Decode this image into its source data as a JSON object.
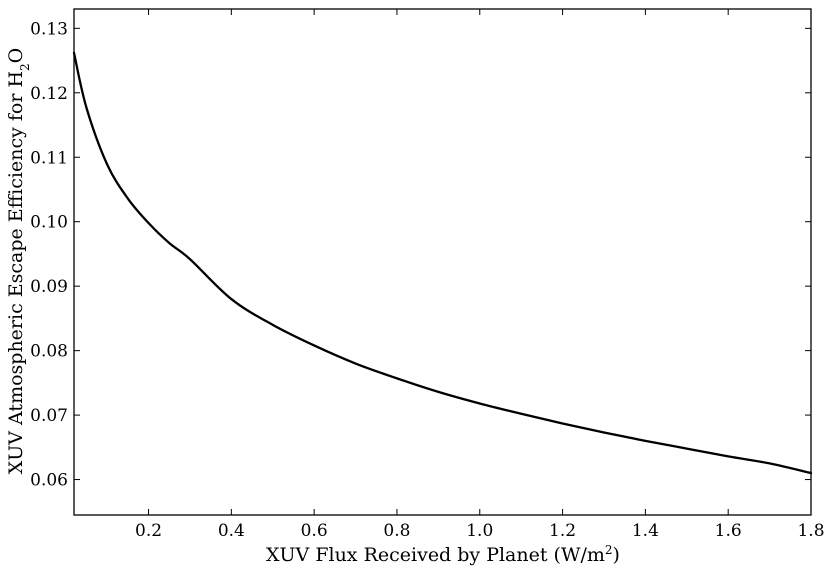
{
  "chart_data": {
    "type": "line",
    "xlabel": {
      "prefix": "XUV Flux Received by Planet (W/m",
      "superscript": "2",
      "suffix": ")"
    },
    "ylabel": {
      "prefix": "XUV Atmospheric Escape Efficiency for H",
      "subscript": "2",
      "suffix": "O"
    },
    "xlim": [
      0.02,
      1.8
    ],
    "ylim": [
      0.0545,
      0.133
    ],
    "xticks": [
      0.2,
      0.4,
      0.6,
      0.8,
      1.0,
      1.2,
      1.4,
      1.6,
      1.8
    ],
    "xtick_labels": [
      "0.2",
      "0.4",
      "0.6",
      "0.8",
      "1.0",
      "1.2",
      "1.4",
      "1.6",
      "1.8"
    ],
    "yticks": [
      0.06,
      0.07,
      0.08,
      0.09,
      0.1,
      0.11,
      0.12,
      0.13
    ],
    "ytick_labels": [
      "0.06",
      "0.07",
      "0.08",
      "0.09",
      "0.10",
      "0.11",
      "0.12",
      "0.13"
    ],
    "grid": false,
    "series": [
      {
        "color": "#000000",
        "x": [
          0.02,
          0.05,
          0.1,
          0.15,
          0.2,
          0.25,
          0.3,
          0.4,
          0.5,
          0.6,
          0.7,
          0.8,
          0.9,
          1.0,
          1.1,
          1.2,
          1.3,
          1.4,
          1.5,
          1.6,
          1.7,
          1.8
        ],
        "y": [
          0.1262,
          0.1177,
          0.1089,
          0.1036,
          0.0998,
          0.0967,
          0.0942,
          0.088,
          0.084,
          0.0808,
          0.078,
          0.0757,
          0.0736,
          0.0718,
          0.0702,
          0.0687,
          0.0673,
          0.066,
          0.0648,
          0.0636,
          0.0625,
          0.061
        ]
      }
    ]
  }
}
